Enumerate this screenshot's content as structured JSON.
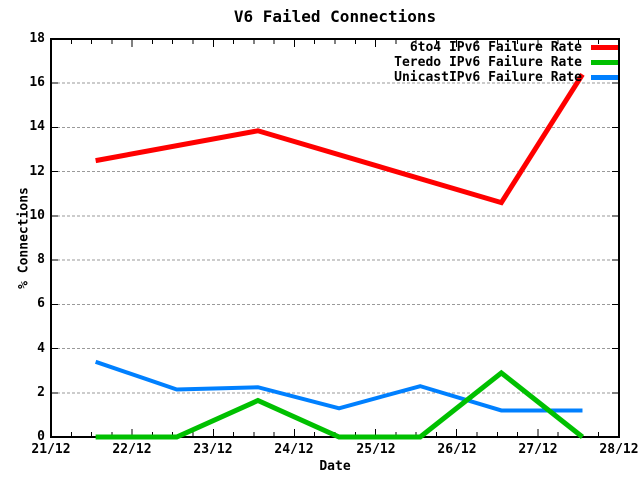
{
  "chart_data": {
    "type": "line",
    "title": "V6 Failed Connections",
    "xlabel": "Date",
    "ylabel": "% Connections",
    "x_axis": {
      "unit": "days after 21/12",
      "range": [
        0,
        7
      ],
      "tick_labels": [
        "21/12",
        "22/12",
        "23/12",
        "24/12",
        "25/12",
        "26/12",
        "27/12",
        "28/12"
      ],
      "minor_tick_interval": 0.25
    },
    "y_axis": {
      "range": [
        0,
        18
      ],
      "tick_step": 2,
      "tick_labels": [
        "0",
        "2",
        "4",
        "6",
        "8",
        "10",
        "12",
        "14",
        "16",
        "18"
      ],
      "grid": "horizontal-dashed"
    },
    "series": [
      {
        "name": "6to4 IPv6 Failure Rate",
        "color": "#ff0000",
        "points": [
          [
            0.55,
            12.5
          ],
          [
            2.55,
            13.85
          ],
          [
            5.55,
            10.6
          ],
          [
            6.55,
            16.4
          ]
        ]
      },
      {
        "name": "Teredo IPv6 Failure Rate",
        "color": "#00c000",
        "points": [
          [
            0.55,
            0
          ],
          [
            1.55,
            0
          ],
          [
            2.55,
            1.65
          ],
          [
            3.55,
            0
          ],
          [
            4.55,
            0
          ],
          [
            5.55,
            2.9
          ],
          [
            6.55,
            0
          ]
        ]
      },
      {
        "name": "UnicastIPv6 Failure Rate",
        "color": "#0080ff",
        "points": [
          [
            0.55,
            3.4
          ],
          [
            1.55,
            2.15
          ],
          [
            2.55,
            2.25
          ],
          [
            3.55,
            1.3
          ],
          [
            4.55,
            2.3
          ],
          [
            5.55,
            1.2
          ],
          [
            6.55,
            1.2
          ]
        ]
      }
    ],
    "legend_position": "top-right-inside",
    "colors": {
      "background": "#ffffff",
      "border": "#000000",
      "grid": "#9a9a9a",
      "text": "#000000"
    }
  }
}
